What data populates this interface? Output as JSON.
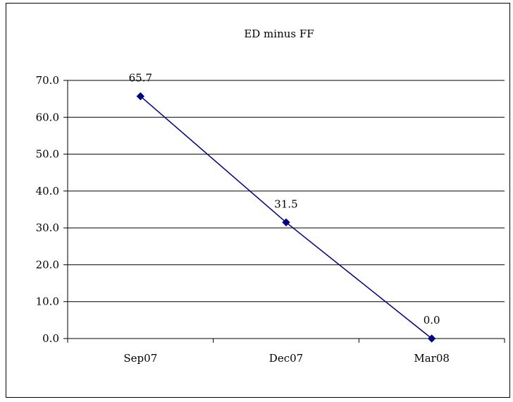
{
  "chart_data": {
    "type": "line",
    "title": "ED minus FF",
    "xlabel": "",
    "ylabel": "",
    "categories": [
      "Sep07",
      "Dec07",
      "Mar08"
    ],
    "series": [
      {
        "values": [
          65.7,
          31.5,
          0.0
        ],
        "data_labels": [
          "65.7",
          "31.5",
          "0.0"
        ],
        "color": "#000080",
        "marker": "diamond"
      }
    ],
    "ylim": [
      0,
      70
    ],
    "yticks": [
      "0.0",
      "10.0",
      "20.0",
      "30.0",
      "40.0",
      "50.0",
      "60.0",
      "70.0"
    ],
    "grid": true,
    "legend": "none"
  }
}
